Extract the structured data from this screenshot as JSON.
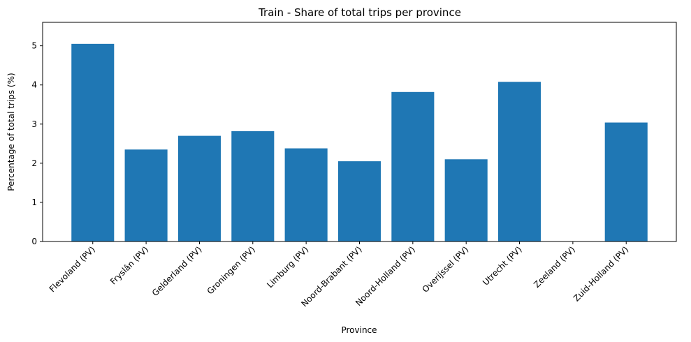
{
  "chart_data": {
    "type": "bar",
    "title": "Train - Share of total trips per province",
    "xlabel": "Province",
    "ylabel": "Percentage of total trips (%)",
    "categories": [
      "Flevoland (PV)",
      "Fryslân (PV)",
      "Gelderland (PV)",
      "Groningen (PV)",
      "Limburg (PV)",
      "Noord-Brabant (PV)",
      "Noord-Holland (PV)",
      "Overijssel (PV)",
      "Utrecht (PV)",
      "Zeeland (PV)",
      "Zuid-Holland (PV)"
    ],
    "values": [
      5.05,
      2.35,
      2.7,
      2.82,
      2.38,
      2.05,
      3.82,
      2.1,
      4.08,
      0.0,
      3.04
    ],
    "ylim": [
      0,
      5.6
    ],
    "yticks": [
      "0",
      "1",
      "2",
      "3",
      "4",
      "5"
    ],
    "bar_color": "#1f77b4",
    "grid": false,
    "legend": "none"
  }
}
